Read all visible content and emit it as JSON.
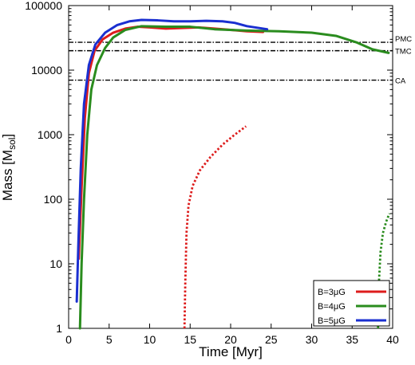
{
  "chart_data": {
    "type": "line",
    "xlabel": "Time [Myr]",
    "ylabel": "Mass [M",
    "ylabel_sub": "sol",
    "ylabel_end": "]",
    "xlim": [
      0,
      40
    ],
    "ylim": [
      1,
      100000
    ],
    "y_scale": "log",
    "grid": false,
    "x_ticks": [
      0,
      5,
      10,
      15,
      20,
      25,
      30,
      35,
      40
    ],
    "y_ticks": [
      1,
      10,
      100,
      1000,
      10000,
      100000
    ],
    "y_tick_labels": [
      "1",
      "10",
      "100",
      "1000",
      "10000",
      "100000"
    ],
    "legend_position": "bottom-right",
    "reference_lines": [
      {
        "label": "PMC",
        "y": 27000
      },
      {
        "label": "TMC",
        "y": 20000
      },
      {
        "label": "CA",
        "y": 7000
      }
    ],
    "series": [
      {
        "name": "B=3μG",
        "color": "#dd1c1c",
        "style": "solid",
        "points": [
          [
            1.25,
            12
          ],
          [
            1.6,
            150
          ],
          [
            2.0,
            1800
          ],
          [
            2.5,
            9000
          ],
          [
            3.2,
            20000
          ],
          [
            4.2,
            30000
          ],
          [
            5.5,
            38000
          ],
          [
            7.0,
            44000
          ],
          [
            8.5,
            47000
          ],
          [
            10.0,
            46000
          ],
          [
            12.0,
            44000
          ],
          [
            14.0,
            45000
          ],
          [
            16.0,
            46000
          ],
          [
            18.0,
            44000
          ],
          [
            20.0,
            42000
          ],
          [
            22.0,
            40000
          ],
          [
            24.0,
            39000
          ]
        ]
      },
      {
        "name": "B=3μG dotted",
        "color": "#dd1c1c",
        "style": "dotted",
        "points": [
          [
            14.3,
            1
          ],
          [
            14.4,
            5
          ],
          [
            14.55,
            30
          ],
          [
            14.8,
            80
          ],
          [
            15.3,
            160
          ],
          [
            16.2,
            280
          ],
          [
            17.5,
            450
          ],
          [
            19.0,
            700
          ],
          [
            20.5,
            1000
          ],
          [
            21.9,
            1350
          ]
        ]
      },
      {
        "name": "B=4μG",
        "color": "#2a8c1e",
        "style": "solid",
        "points": [
          [
            1.4,
            1
          ],
          [
            1.6,
            10
          ],
          [
            1.9,
            100
          ],
          [
            2.3,
            1000
          ],
          [
            2.8,
            5000
          ],
          [
            3.5,
            12000
          ],
          [
            4.5,
            22000
          ],
          [
            5.5,
            32000
          ],
          [
            7.0,
            42000
          ],
          [
            9.0,
            48000
          ],
          [
            12.0,
            47000
          ],
          [
            15.0,
            47000
          ],
          [
            18.0,
            43000
          ],
          [
            22.0,
            41000
          ],
          [
            26.0,
            40000
          ],
          [
            30.0,
            38000
          ],
          [
            33.0,
            34000
          ],
          [
            35.5,
            27000
          ],
          [
            37.5,
            21000
          ],
          [
            39.5,
            18500
          ]
        ]
      },
      {
        "name": "B=4μG dotted",
        "color": "#2a8c1e",
        "style": "dotted",
        "points": [
          [
            38.2,
            1
          ],
          [
            38.3,
            5
          ],
          [
            38.5,
            15
          ],
          [
            38.8,
            30
          ],
          [
            39.2,
            45
          ],
          [
            39.6,
            60
          ]
        ]
      },
      {
        "name": "B=5μG",
        "color": "#1a2fd0",
        "style": "solid",
        "points": [
          [
            1.0,
            2.6
          ],
          [
            1.2,
            20
          ],
          [
            1.5,
            300
          ],
          [
            1.9,
            3000
          ],
          [
            2.5,
            12000
          ],
          [
            3.3,
            25000
          ],
          [
            4.5,
            38000
          ],
          [
            6.0,
            50000
          ],
          [
            7.5,
            57000
          ],
          [
            9.0,
            60000
          ],
          [
            11.0,
            59000
          ],
          [
            13.0,
            57000
          ],
          [
            15.0,
            57000
          ],
          [
            17.0,
            58000
          ],
          [
            19.0,
            57000
          ],
          [
            20.5,
            54000
          ],
          [
            22.0,
            48000
          ],
          [
            24.5,
            43000
          ]
        ]
      }
    ],
    "legend": [
      {
        "label": "B=3μG",
        "color": "#dd1c1c"
      },
      {
        "label": "B=4μG",
        "color": "#2a8c1e"
      },
      {
        "label": "B=5μG",
        "color": "#1a2fd0"
      }
    ]
  }
}
